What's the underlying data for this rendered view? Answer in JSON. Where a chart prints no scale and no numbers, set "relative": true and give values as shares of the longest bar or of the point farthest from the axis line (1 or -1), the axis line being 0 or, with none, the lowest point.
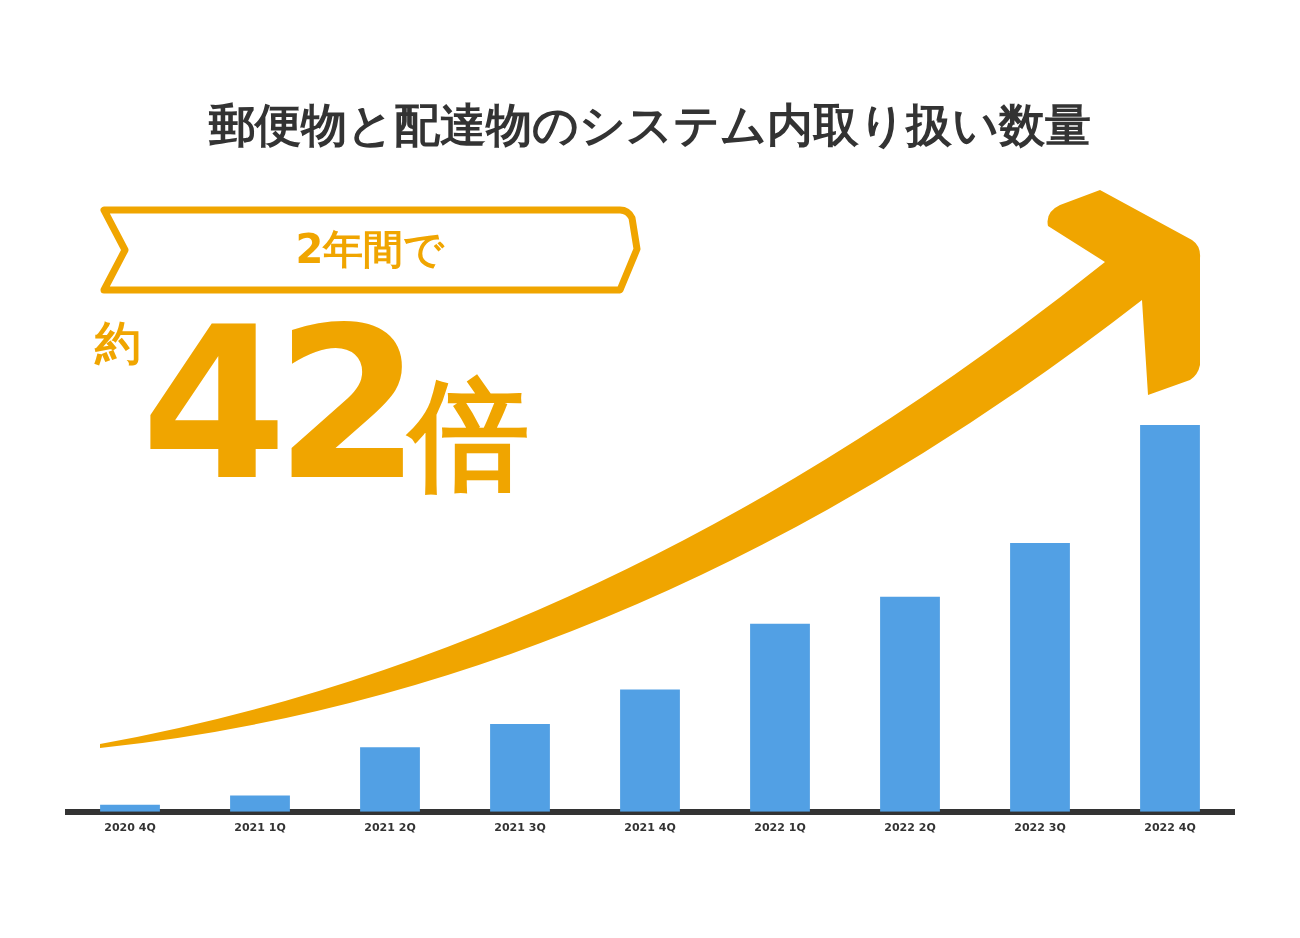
{
  "chart_data": {
    "type": "bar",
    "title": "郵便物と配達物のシステム内取り扱い数量",
    "annotations": [
      "2年間で",
      "約42倍"
    ],
    "categories": [
      "2020 4Q",
      "2021 1Q",
      "2021 2Q",
      "2021 3Q",
      "2021 4Q",
      "2022 1Q",
      "2022 2Q",
      "2022 3Q",
      "2022 4Q"
    ],
    "values": [
      0.018,
      0.042,
      0.167,
      0.227,
      0.316,
      0.486,
      0.556,
      0.695,
      1
    ],
    "color": "#52a0e4",
    "relative": true,
    "grid": false,
    "legend": false
  }
}
